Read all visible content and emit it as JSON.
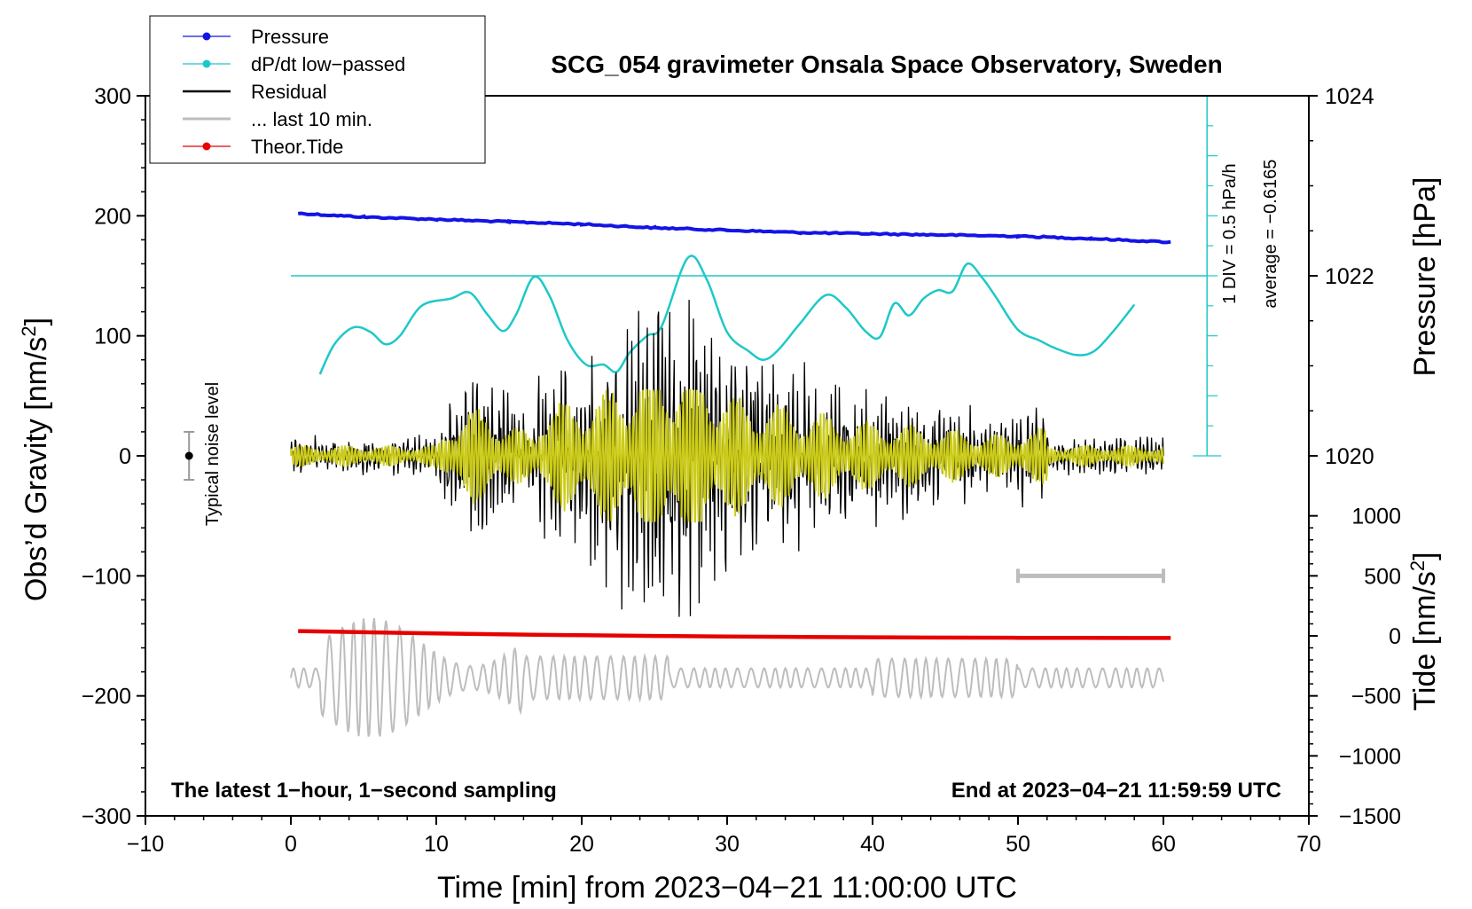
{
  "chart_data": {
    "type": "line",
    "title": "SCG_054 gravimeter Onsala Space Observatory, Sweden",
    "xlabel": "Time [min] from 2023−04−21 11:00:00 UTC",
    "ylabel": "Obs’d Gravity [nm/s",
    "ylabel_sup": "2",
    "ylabel_end": "]",
    "y2label": "Pressure [hPa]",
    "y3label": "Tide [nm/s",
    "y3label_sup": "2",
    "y3label_end": "]",
    "xlim": [
      -10,
      70
    ],
    "ylim": [
      -300,
      300
    ],
    "x_ticks": [
      -10,
      0,
      10,
      20,
      30,
      40,
      50,
      60,
      70
    ],
    "x_tick_labels": [
      "−10",
      "0",
      "10",
      "20",
      "30",
      "40",
      "50",
      "60",
      "70"
    ],
    "y_ticks": [
      -300,
      -200,
      -100,
      0,
      100,
      200,
      300
    ],
    "y_tick_labels": [
      "−300",
      "−200",
      "−100",
      "0",
      "100",
      "200",
      "300"
    ],
    "pressure_axis": {
      "ticks": [
        1020,
        1022,
        1024
      ],
      "tick_labels": [
        "1020",
        "1022",
        "1024"
      ],
      "ref_value": 1022,
      "ref_gravity": 150,
      "gravity_per_hpa": 75
    },
    "tide_axis": {
      "ticks": [
        1000,
        500,
        0,
        -500,
        -1000,
        -1500
      ],
      "tick_labels": [
        "1000",
        "500",
        "0",
        "−500",
        "−1000",
        "−1500"
      ],
      "ref_value": -1500,
      "ref_gravity": -300,
      "gravity_per_unit": 0.1
    },
    "dpdt_scale": {
      "label": "1 DIV = 0.5 hPa/h",
      "average_label": "average = −0.6165",
      "x": 63,
      "y_top": 300,
      "y_bottom": 0,
      "reference_level": 150
    },
    "legend": [
      {
        "label": "Pressure",
        "color": "#1414e6",
        "marker": true
      },
      {
        "label": "dP/dt low−passed",
        "color": "#1fc8c8",
        "marker": true
      },
      {
        "label": "Residual",
        "color": "#000000",
        "marker": false
      },
      {
        "label": "... last 10 min.",
        "color": "#bdbdbd",
        "marker": false
      },
      {
        "label": "Theor.Tide",
        "color": "#e60000",
        "marker": true
      }
    ],
    "noise_level": {
      "label": "Typical noise level",
      "x": -7,
      "y": 0,
      "err": 20
    },
    "annotations": {
      "left": "The latest 1−hour, 1−second sampling",
      "right": "End at 2023−04−21 11:59:59 UTC"
    },
    "series": [
      {
        "name": "Pressure",
        "color": "#1414e6",
        "x": [
          0.5,
          5,
          10,
          15,
          20,
          25,
          30,
          35,
          40,
          45,
          50,
          55,
          60.5
        ],
        "values": [
          202,
          199,
          197,
          195,
          193,
          190,
          188,
          186,
          185,
          184,
          183,
          181,
          178
        ]
      },
      {
        "name": "dP/dt low-passed",
        "color": "#1fc8c8",
        "x": [
          2,
          3,
          4.3,
          5.5,
          6.5,
          7.5,
          9,
          11,
          12.3,
          13.5,
          14.6,
          15.5,
          16.7,
          17.8,
          19,
          20.3,
          21.5,
          22.4,
          23.3,
          24.5,
          25.5,
          27.3,
          28.6,
          30,
          31.5,
          32.5,
          33.5,
          35,
          36.8,
          38.2,
          39.5,
          40.5,
          41.5,
          42.5,
          43.5,
          44.5,
          45.5,
          46.5,
          47.5,
          48.5,
          50,
          51.5,
          52.5,
          54,
          55.2,
          56.5,
          58
        ],
        "values": [
          68,
          93,
          107,
          103,
          93,
          100,
          125,
          131,
          136,
          118,
          104,
          118,
          149,
          133,
          97,
          76,
          76,
          70,
          86,
          100,
          108,
          165,
          147,
          103,
          87,
          80,
          88,
          110,
          134,
          123,
          104,
          99,
          127,
          117,
          131,
          138,
          137,
          160,
          149,
          132,
          105,
          96,
          90,
          84,
          87,
          103,
          126
        ]
      },
      {
        "name": "Residual",
        "color": "#000000",
        "x_start": 0,
        "x_end": 60
      },
      {
        "name": "Residual filtered",
        "color": "#cccc1a",
        "x_start": 0,
        "x_end": 60
      },
      {
        "name": "... last 10 min.",
        "color": "#bdbdbd",
        "x_start": 0,
        "x_end": 60,
        "baseline": -185,
        "bar": {
          "x0": 50,
          "x1": 60,
          "y": -100
        }
      },
      {
        "name": "Theor.Tide",
        "color": "#e60000",
        "x": [
          0.5,
          10,
          20,
          30,
          40,
          50,
          60.5
        ],
        "values": [
          -146,
          -148,
          -149.5,
          -150.5,
          -151.2,
          -151.6,
          -151.8
        ]
      }
    ]
  }
}
